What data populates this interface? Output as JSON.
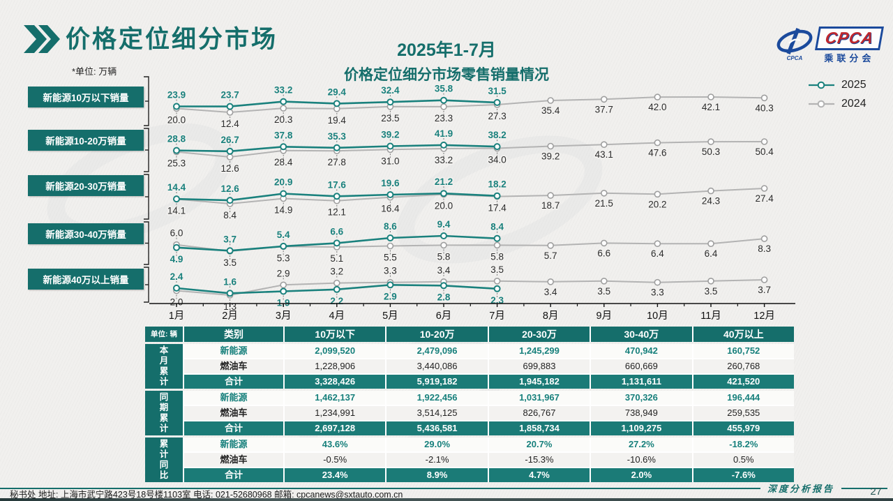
{
  "header": {
    "title": "价格定位细分市场",
    "chart_title_line1": "2025年1-7月",
    "chart_title_line2": "价格定位细分市场零售销量情况",
    "unit_note": "*单位: 万辆",
    "logo": {
      "text": "CPCA",
      "subtext": "乘联分会",
      "small": "CPCA"
    }
  },
  "legend": {
    "items": [
      {
        "label": "2025",
        "color": "#1a817d"
      },
      {
        "label": "2024",
        "color": "#b3b3b3"
      }
    ]
  },
  "chart_data": {
    "type": "line",
    "title": "2025年1-7月 价格定位细分市场零售销量情况",
    "unit": "万辆",
    "legend_position": "top-right",
    "grid": false,
    "x": [
      "1月",
      "2月",
      "3月",
      "4月",
      "5月",
      "6月",
      "7月",
      "8月",
      "9月",
      "10月",
      "11月",
      "12月"
    ],
    "bands": [
      {
        "label": "新能源10万以下销量",
        "series": [
          {
            "name": "2025",
            "color": "#1a817d",
            "values": [
              23.9,
              23.7,
              33.2,
              29.4,
              32.4,
              35.8,
              31.5
            ]
          },
          {
            "name": "2024",
            "color": "#b3b3b3",
            "values": [
              20.0,
              12.4,
              20.3,
              19.4,
              23.5,
              23.3,
              27.3,
              35.4,
              37.7,
              42.0,
              42.1,
              40.3
            ]
          }
        ]
      },
      {
        "label": "新能源10-20万销量",
        "series": [
          {
            "name": "2025",
            "color": "#1a817d",
            "values": [
              28.8,
              26.7,
              37.8,
              35.3,
              39.2,
              41.9,
              38.2
            ]
          },
          {
            "name": "2024",
            "color": "#b3b3b3",
            "values": [
              25.3,
              12.6,
              28.4,
              27.8,
              31.0,
              33.2,
              34.0,
              39.2,
              43.1,
              47.6,
              50.3,
              50.4
            ]
          }
        ]
      },
      {
        "label": "新能源20-30万销量",
        "series": [
          {
            "name": "2025",
            "color": "#1a817d",
            "values": [
              14.4,
              12.6,
              20.9,
              17.6,
              19.6,
              21.2,
              18.2
            ]
          },
          {
            "name": "2024",
            "color": "#b3b3b3",
            "values": [
              14.1,
              8.4,
              14.9,
              12.1,
              16.4,
              20.0,
              17.4,
              18.7,
              21.5,
              20.2,
              24.3,
              27.4
            ]
          }
        ]
      },
      {
        "label": "新能源30-40万销量",
        "series": [
          {
            "name": "2025",
            "color": "#1a817d",
            "values": [
              4.9,
              3.7,
              5.4,
              6.6,
              8.6,
              9.4,
              8.4
            ]
          },
          {
            "name": "2024",
            "color": "#b3b3b3",
            "values": [
              6.0,
              3.5,
              5.3,
              5.1,
              5.5,
              5.8,
              5.8,
              5.7,
              6.6,
              6.4,
              6.4,
              8.3
            ]
          }
        ]
      },
      {
        "label": "新能源40万以上销量",
        "series": [
          {
            "name": "2025",
            "color": "#1a817d",
            "values": [
              2.4,
              1.6,
              1.9,
              2.2,
              2.9,
              2.8,
              2.3
            ]
          },
          {
            "name": "2024",
            "color": "#b3b3b3",
            "values": [
              2.0,
              1.3,
              2.9,
              3.2,
              3.3,
              3.4,
              3.5,
              3.4,
              3.5,
              3.3,
              3.5,
              3.7
            ]
          }
        ]
      }
    ]
  },
  "table": {
    "unit_label": "单位: 辆",
    "category_header": "类别",
    "col_headers": [
      "10万以下",
      "10-20万",
      "20-30万",
      "30-40万",
      "40万以上"
    ],
    "groups": [
      {
        "name": "本月累计",
        "rows": [
          {
            "label": "新能源",
            "style": "nev",
            "values": [
              "2,099,520",
              "2,479,096",
              "1,245,299",
              "470,942",
              "160,752"
            ]
          },
          {
            "label": "燃油车",
            "style": "ice",
            "values": [
              "1,228,906",
              "3,440,086",
              "699,883",
              "660,669",
              "260,768"
            ]
          },
          {
            "label": "合计",
            "style": "total",
            "values": [
              "3,328,426",
              "5,919,182",
              "1,945,182",
              "1,131,611",
              "421,520"
            ]
          }
        ]
      },
      {
        "name": "同期累计",
        "rows": [
          {
            "label": "新能源",
            "style": "nev",
            "values": [
              "1,462,137",
              "1,922,456",
              "1,031,967",
              "370,326",
              "196,444"
            ]
          },
          {
            "label": "燃油车",
            "style": "ice",
            "values": [
              "1,234,991",
              "3,514,125",
              "826,767",
              "738,949",
              "259,535"
            ]
          },
          {
            "label": "合计",
            "style": "total",
            "values": [
              "2,697,128",
              "5,436,581",
              "1,858,734",
              "1,109,275",
              "455,979"
            ]
          }
        ]
      },
      {
        "name": "累计同比",
        "rows": [
          {
            "label": "新能源",
            "style": "nev",
            "values": [
              "43.6%",
              "29.0%",
              "20.7%",
              "27.2%",
              "-18.2%"
            ]
          },
          {
            "label": "燃油车",
            "style": "ice",
            "values": [
              "-0.5%",
              "-2.1%",
              "-15.3%",
              "-10.6%",
              "0.5%"
            ]
          },
          {
            "label": "合计",
            "style": "total",
            "values": [
              "23.4%",
              "8.9%",
              "4.7%",
              "2.0%",
              "-7.6%"
            ]
          }
        ]
      }
    ]
  },
  "footer": {
    "report_label": "深度分析报告",
    "contact": "秘书处   地址: 上海市武宁路423号18号楼1103室   电话: 021-52680968   邮箱: cpcanews@sxtauto.com.cn",
    "page_number": "27"
  },
  "colors": {
    "teal": "#156e6b",
    "teal_line": "#1a817d",
    "gray_line": "#b3b3b3",
    "label_dark": "#2c2c2c",
    "background": "#f1f0ee",
    "axis": "#111111"
  }
}
